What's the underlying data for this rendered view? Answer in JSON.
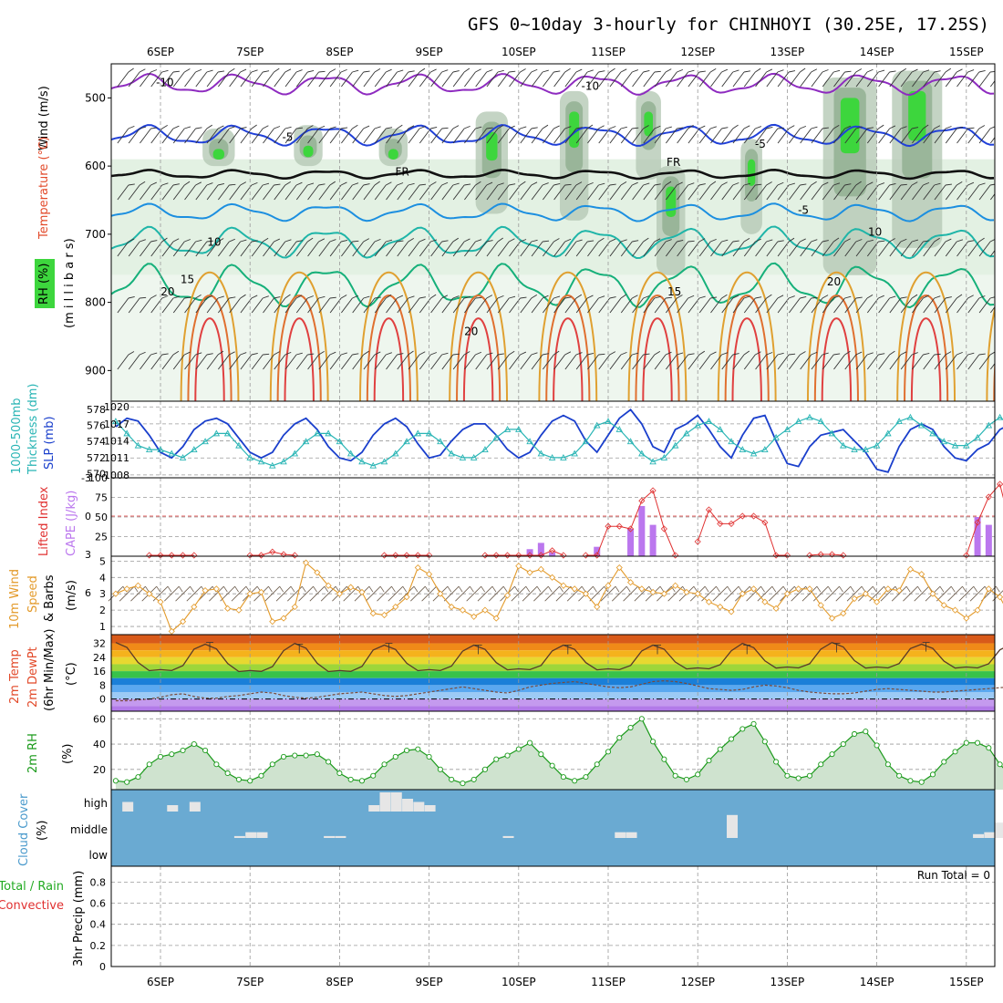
{
  "title": "GFS 0~10day 3-hourly for CHINHOYI (30.25E, 17.25S)",
  "date_labels": [
    "6SEP",
    "7SEP",
    "8SEP",
    "9SEP",
    "10SEP",
    "11SEP",
    "12SEP",
    "13SEP",
    "14SEP",
    "15SEP"
  ],
  "run_total_label": "Run Total = 0",
  "panel_labels": {
    "upper_air": [
      "Wind (m/s)",
      "Temperature (°C)",
      "RH (%)",
      "(m i l l i b a r s)"
    ],
    "thickness_slp": [
      "1000-500mb",
      "Thickness (dm)",
      "SLP (mb)"
    ],
    "cape_li": [
      "Lifted Index",
      "CAPE (J/kg)"
    ],
    "wind10m": [
      "10m Wind",
      "Speed",
      "& Barbs",
      "(m/s)"
    ],
    "temp2m": [
      "2m Temp",
      "2m DewPt",
      "(6hr Min/Max)",
      "(°C)"
    ],
    "rh2m": [
      "2m RH",
      "(%)"
    ],
    "cloud": [
      "Cloud Cover",
      "(%)"
    ],
    "precip": [
      "Total / Rain",
      "Convective",
      "3hr Precip (mm)"
    ]
  },
  "colors": {
    "rh_green": "#3dd63d",
    "slp_line": "#1a3fcc",
    "thickness_line": "#2ab5b5",
    "lifted_index": "#e03030",
    "cape_bar": "#bb77ee",
    "wind_speed": "#e39a2a",
    "rh2m_line": "#1a9a1a",
    "cloud_bg": "#6aaad2",
    "cloud_bar": "#e6e6e6"
  },
  "chart_data": [
    {
      "type": "line",
      "name": "upper-air",
      "ylabel": "Wind (m/s) / Temperature (°C) / RH (%) (millibars)",
      "y_ticks": [
        500,
        600,
        700,
        800,
        900
      ],
      "ylim": [
        945,
        450
      ],
      "contour_labels": [
        {
          "text": "-10",
          "day": 0.05,
          "p": 483
        },
        {
          "text": "-10",
          "day": 4.8,
          "p": 488
        },
        {
          "text": "-5",
          "day": 1.42,
          "p": 563
        },
        {
          "text": "-5",
          "day": 6.7,
          "p": 573
        },
        {
          "text": "FR",
          "day": 2.7,
          "p": 614
        },
        {
          "text": "FR",
          "day": 5.73,
          "p": 600
        },
        {
          "text": "-5",
          "day": 7.18,
          "p": 670
        },
        {
          "text": "10",
          "day": 0.6,
          "p": 717
        },
        {
          "text": "10",
          "day": 7.98,
          "p": 702
        },
        {
          "text": "15",
          "day": 0.3,
          "p": 772
        },
        {
          "text": "15",
          "day": 5.74,
          "p": 790
        },
        {
          "text": "20",
          "day": 0.08,
          "p": 790
        },
        {
          "text": "20",
          "day": 7.52,
          "p": 775
        },
        {
          "text": "20",
          "day": 3.47,
          "p": 848
        }
      ],
      "isotherms": [
        {
          "label": "-10",
          "color": "#8e2bc0",
          "base": 480,
          "amp": 12
        },
        {
          "label": "-5",
          "color": "#2040d8",
          "base": 555,
          "amp": 12
        },
        {
          "label": "FR",
          "color": "#111111",
          "base": 612,
          "amp": 5
        },
        {
          "label": "-5",
          "color": "#1c8fe0",
          "base": 668,
          "amp": 10
        },
        {
          "label": "10",
          "color": "#1fb5a8",
          "base": 712,
          "amp": 18
        },
        {
          "label": "15",
          "color": "#16b07a",
          "base": 775,
          "amp": 25
        }
      ]
    },
    {
      "type": "line",
      "name": "thickness-slp",
      "y_ticks_left": [
        570,
        572,
        574,
        576,
        578
      ],
      "y_ticks_right": [
        1008,
        1011,
        1014,
        1017,
        1020
      ],
      "series": [
        {
          "name": "SLP (mb)",
          "values": [
            1016.5,
            1018,
            1017.5,
            1015,
            1012,
            1011,
            1013,
            1016,
            1017.5,
            1018,
            1017,
            1014.5,
            1012,
            1011,
            1012,
            1015,
            1017,
            1018,
            1016,
            1013,
            1011,
            1010.5,
            1012,
            1015,
            1017,
            1018,
            1016.5,
            1013.5,
            1011,
            1011.5,
            1014,
            1016,
            1017,
            1017,
            1015,
            1012.5,
            1011,
            1012,
            1015,
            1017.5,
            1018.5,
            1017.5,
            1014,
            1012,
            1015,
            1018,
            1019.5,
            1017,
            1013,
            1012,
            1016,
            1017,
            1018.5,
            1016,
            1013,
            1011,
            1015,
            1018,
            1018.5,
            1014,
            1010,
            1009.5,
            1013,
            1015,
            1015.5,
            1016,
            1014,
            1012,
            1009,
            1008.5,
            1013,
            1016,
            1017,
            1016,
            1013,
            1011,
            1010.5,
            1012.5,
            1013.5,
            1016,
            1017,
            1012,
            1010,
            1012,
            1014,
            1013,
            1015.5,
            1016.5
          ]
        },
        {
          "name": "1000-500mb Thickness (dm)",
          "values": [
            576.5,
            575,
            573.5,
            573,
            573,
            572.5,
            572,
            573,
            574,
            575,
            575,
            573.5,
            572,
            571.5,
            571,
            571.5,
            572.5,
            574,
            575,
            575,
            574,
            572.5,
            571.5,
            571,
            571.5,
            572.5,
            574,
            575,
            575,
            574,
            572.5,
            572,
            572,
            573,
            574.5,
            575.5,
            575.5,
            574,
            572.5,
            572,
            572,
            572.5,
            574,
            576,
            576.5,
            575.5,
            574,
            572.5,
            571.5,
            572,
            573.5,
            575,
            576,
            576.5,
            575.5,
            574,
            573,
            572.5,
            573,
            574.5,
            575.5,
            576.5,
            577,
            576.5,
            575,
            573.5,
            573,
            573,
            573.5,
            575,
            576.5,
            577,
            576,
            575,
            574,
            573.5,
            573.5,
            574.5,
            576,
            577,
            576,
            574.5,
            573.5,
            573,
            574,
            575,
            574.5,
            574
          ]
        }
      ]
    },
    {
      "type": "bar",
      "name": "cape-lifted-index",
      "y_ticks_left": [
        -3,
        0,
        3,
        6
      ],
      "y_ticks_right": [
        25,
        50,
        75,
        100
      ],
      "cape_values": [
        0,
        0,
        0,
        0,
        0,
        0,
        0,
        0,
        0,
        0,
        0,
        0,
        0,
        0,
        0,
        0,
        0,
        0,
        0,
        0,
        0,
        0,
        0,
        0,
        0,
        0,
        0,
        0,
        0,
        0,
        0,
        0,
        0,
        0,
        0,
        0,
        0,
        9,
        17,
        5,
        0,
        0,
        0,
        12,
        0,
        0,
        35,
        64,
        40,
        0,
        0,
        0,
        0,
        0,
        0,
        0,
        0,
        0,
        0,
        0,
        0,
        0,
        0,
        0,
        0,
        0,
        0,
        0,
        0,
        0,
        0,
        0,
        0,
        0,
        0,
        0,
        0,
        50,
        40,
        0,
        0,
        0,
        0,
        0,
        10,
        95,
        55,
        0,
        0,
        0
      ],
      "lifted_index": [
        null,
        null,
        null,
        6,
        5.4,
        5,
        3.5,
        5.5,
        null,
        null,
        null,
        null,
        6,
        4.2,
        2.8,
        3,
        5.5,
        null,
        null,
        null,
        null,
        null,
        null,
        null,
        5.5,
        4.6,
        3.8,
        3.6,
        5,
        null,
        null,
        null,
        null,
        6,
        3.6,
        5,
        6,
        5.2,
        4.5,
        2.7,
        5,
        null,
        6,
        4,
        0.8,
        0.8,
        1,
        -1.2,
        -2,
        1,
        5,
        null,
        2,
        -0.5,
        0.6,
        0.6,
        0,
        0,
        0.5,
        6,
        6,
        null,
        4,
        3,
        3,
        5,
        null,
        null,
        null,
        null,
        null,
        null,
        null,
        null,
        null,
        null,
        3.5,
        0.5,
        -1.5,
        -2.5,
        1,
        2.5,
        3,
        2.8,
        2,
        0.2,
        -0.8,
        -1.8,
        -1,
        1.2,
        2.5,
        3.5,
        3.6,
        1.5,
        -0.5,
        0
      ]
    },
    {
      "type": "line",
      "name": "wind-10m",
      "y_ticks": [
        1,
        2,
        3,
        4,
        5
      ],
      "ylim": [
        0.5,
        5.3
      ],
      "values": [
        3,
        3.3,
        3.5,
        3,
        2.5,
        0.7,
        1.3,
        2.2,
        3.2,
        3.3,
        2.1,
        2,
        3,
        3.1,
        1.3,
        1.5,
        2.2,
        4.9,
        4.3,
        3.5,
        3,
        3.4,
        3.1,
        1.8,
        1.7,
        2.2,
        2.8,
        4.6,
        4.2,
        3,
        2.2,
        2,
        1.6,
        2,
        1.5,
        2.9,
        4.7,
        4.3,
        4.5,
        4,
        3.5,
        3.3,
        3,
        2.2,
        3.5,
        4.6,
        3.7,
        3.3,
        3.1,
        3,
        3.5,
        3.1,
        3,
        2.5,
        2.2,
        1.9,
        3,
        3.3,
        2.5,
        2.1,
        3,
        3.3,
        3.3,
        2.3,
        1.5,
        1.8,
        2.7,
        3,
        2.5,
        3.3,
        3.2,
        4.5,
        4.2,
        3,
        2.3,
        2,
        1.5,
        2,
        3.3,
        2.8,
        1.5,
        2.2,
        2.8,
        1.8,
        1.5,
        1.3,
        1.5,
        2,
        3.3
      ]
    },
    {
      "type": "area",
      "name": "temp-2m",
      "y_ticks": [
        0,
        8,
        16,
        24,
        32
      ],
      "ylim": [
        -7,
        37
      ],
      "temp_max_daily": [
        32.5,
        31.5,
        32,
        31,
        31,
        31,
        31,
        32,
        32.5,
        31.5
      ],
      "temp_min_daily": [
        16,
        15.5,
        15.5,
        16,
        16.5,
        16.5,
        17,
        17.5,
        17.5,
        17.5
      ],
      "dewpoint_values": [
        -1,
        -1,
        -0.5,
        0,
        1,
        2.5,
        3,
        1.5,
        0.5,
        0.5,
        1.5,
        2,
        3,
        4,
        3.5,
        2,
        1,
        0.5,
        1,
        2,
        3,
        3.5,
        4,
        3,
        2,
        1.5,
        2,
        3,
        4,
        5,
        6,
        7,
        6,
        5,
        4,
        3.5,
        5,
        7,
        8,
        9,
        9.5,
        10,
        9,
        8,
        7,
        6.5,
        7,
        8.5,
        10,
        10.5,
        10,
        9,
        7.5,
        6,
        5.5,
        5,
        5.5,
        7,
        8,
        7.5,
        6.5,
        5,
        4,
        3.5,
        3,
        3,
        3.5,
        4.5,
        5.5,
        6,
        5.5,
        5,
        4.5,
        4,
        4,
        4.5,
        5,
        5.5,
        6,
        6.5,
        7,
        7.5,
        8,
        8.5,
        9,
        9.2
      ]
    },
    {
      "type": "area",
      "name": "rh-2m",
      "y_ticks": [
        20,
        40,
        60
      ],
      "ylim": [
        4,
        66
      ],
      "values": [
        11,
        10,
        14,
        24,
        30,
        32,
        35,
        40,
        35,
        24,
        17,
        12,
        11,
        15,
        24,
        30,
        31,
        31,
        32,
        26,
        17,
        12,
        11,
        15,
        24,
        30,
        35,
        36,
        30,
        20,
        12,
        9,
        12,
        20,
        28,
        31,
        36,
        41,
        32,
        23,
        14,
        11,
        14,
        24,
        34,
        45,
        53,
        60,
        42,
        28,
        15,
        12,
        16,
        27,
        36,
        44,
        52,
        56,
        42,
        26,
        15,
        13,
        15,
        24,
        32,
        40,
        48,
        50,
        39,
        24,
        15,
        11,
        10,
        16,
        26,
        34,
        41,
        41,
        37,
        24,
        15,
        13,
        15,
        23,
        31,
        37,
        44,
        52,
        56,
        40
      ]
    },
    {
      "type": "bar",
      "name": "cloud-cover",
      "categories": [
        "high",
        "middle",
        "low"
      ],
      "high_values": [
        0,
        15,
        0,
        0,
        0,
        10,
        0,
        15,
        0,
        0,
        0,
        0,
        0,
        0,
        0,
        0,
        0,
        0,
        0,
        0,
        0,
        0,
        0,
        10,
        30,
        30,
        20,
        15,
        10,
        0,
        0,
        0,
        0,
        0,
        0,
        0,
        0,
        0,
        0,
        0,
        0,
        0,
        0,
        0,
        0,
        0,
        0,
        0,
        0,
        0,
        0,
        0,
        0,
        0,
        0,
        0,
        0,
        0,
        0,
        0,
        0,
        0,
        0,
        0,
        0,
        0,
        0,
        0,
        0,
        0,
        0,
        0,
        0,
        0,
        0,
        0,
        0,
        0,
        0,
        0,
        0,
        0,
        0,
        0,
        0,
        0,
        0,
        0,
        0,
        0,
        0,
        0
      ],
      "middle_values": [
        0,
        0,
        0,
        0,
        0,
        0,
        0,
        0,
        0,
        0,
        0,
        5,
        15,
        15,
        0,
        0,
        0,
        0,
        0,
        5,
        5,
        0,
        0,
        0,
        0,
        0,
        0,
        0,
        0,
        0,
        0,
        0,
        0,
        0,
        0,
        5,
        0,
        0,
        0,
        0,
        0,
        0,
        0,
        0,
        0,
        15,
        15,
        0,
        0,
        0,
        0,
        0,
        0,
        0,
        0,
        60,
        0,
        0,
        0,
        0,
        0,
        0,
        0,
        0,
        0,
        0,
        0,
        0,
        0,
        0,
        0,
        0,
        0,
        0,
        0,
        0,
        0,
        10,
        15,
        40,
        40,
        20,
        20,
        0,
        0,
        0,
        0,
        40,
        30,
        25,
        0,
        0,
        0
      ]
    },
    {
      "type": "line",
      "name": "precip-3hr",
      "y_ticks": [
        0,
        0.2,
        0.4,
        0.6,
        0.8
      ],
      "ylim": [
        0,
        0.95
      ],
      "values": []
    }
  ]
}
